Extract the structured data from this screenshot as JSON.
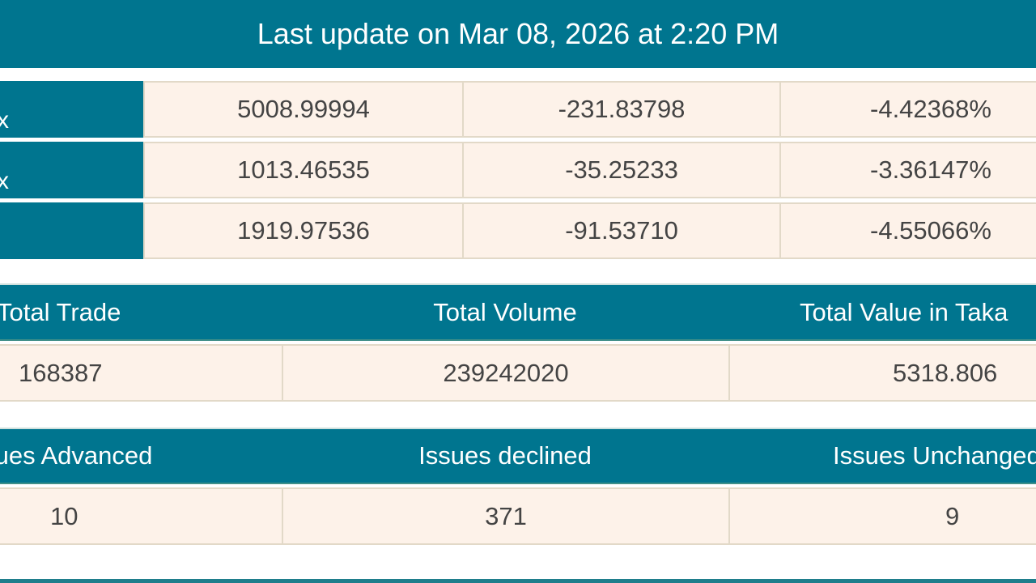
{
  "banner": {
    "text": "Last update on Mar 08, 2026 at 2:20 PM"
  },
  "indices": [
    {
      "label": "x",
      "value": "5008.99994",
      "change": "-231.83798",
      "percent": "-4.42368%"
    },
    {
      "label": "x",
      "value": "1013.46535",
      "change": "-35.25233",
      "percent": "-3.36147%"
    },
    {
      "label": "",
      "value": "1919.97536",
      "change": "-91.53710",
      "percent": "-4.55066%"
    }
  ],
  "trade": {
    "headers": [
      "Total Trade",
      "Total Volume",
      "Total Value in Taka"
    ],
    "values": [
      "168387",
      "239242020",
      "5318.806"
    ]
  },
  "issues": {
    "headers": [
      "Issues Advanced",
      "Issues declined",
      "Issues Unchanged"
    ],
    "values": [
      "10",
      "371",
      "9"
    ]
  },
  "colors": {
    "header": "#00758f",
    "cell": "#fdf2e9"
  }
}
